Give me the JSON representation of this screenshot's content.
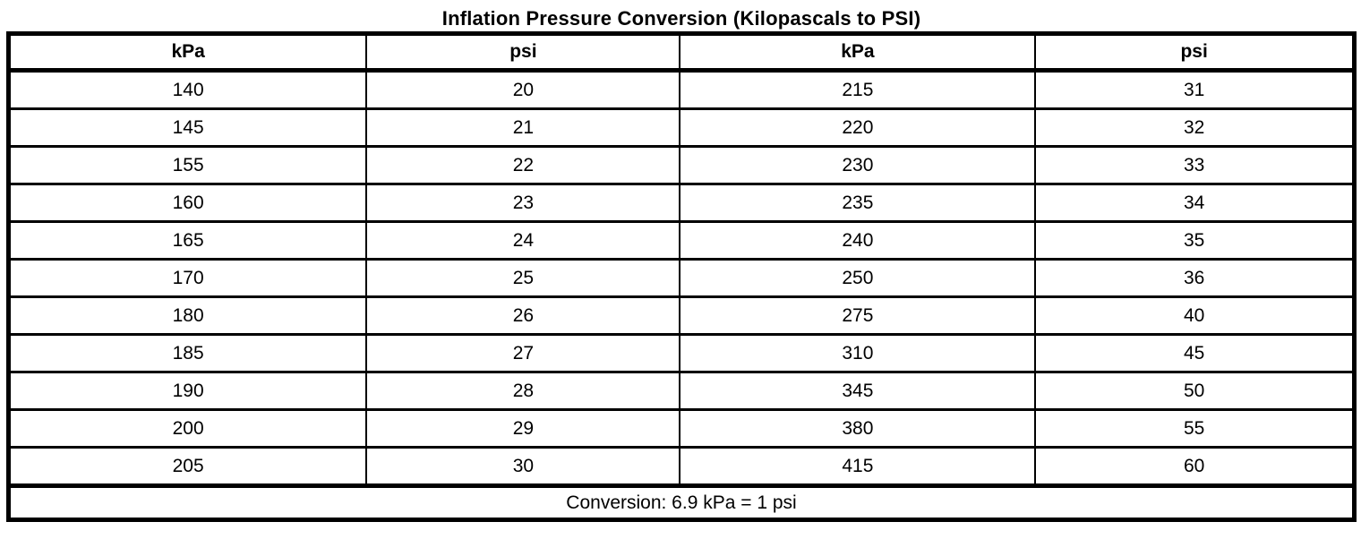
{
  "title": "Inflation Pressure Conversion (Kilopascals to PSI)",
  "table": {
    "headers": [
      "kPa",
      "psi",
      "kPa",
      "psi"
    ],
    "rows": [
      [
        "140",
        "20",
        "215",
        "31"
      ],
      [
        "145",
        "21",
        "220",
        "32"
      ],
      [
        "155",
        "22",
        "230",
        "33"
      ],
      [
        "160",
        "23",
        "235",
        "34"
      ],
      [
        "165",
        "24",
        "240",
        "35"
      ],
      [
        "170",
        "25",
        "250",
        "36"
      ],
      [
        "180",
        "26",
        "275",
        "40"
      ],
      [
        "185",
        "27",
        "310",
        "45"
      ],
      [
        "190",
        "28",
        "345",
        "50"
      ],
      [
        "200",
        "29",
        "380",
        "55"
      ],
      [
        "205",
        "30",
        "415",
        "60"
      ]
    ],
    "footer": "Conversion: 6.9 kPa = 1 psi"
  },
  "colors": {
    "border": "#000000",
    "background": "#ffffff",
    "text": "#000000"
  }
}
